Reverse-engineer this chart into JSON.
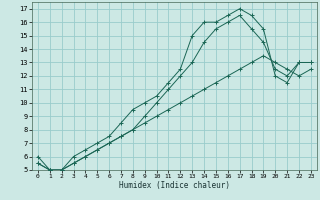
{
  "xlabel": "Humidex (Indice chaleur)",
  "bg_color": "#cce8e4",
  "grid_color": "#99cccc",
  "line_color": "#1a6655",
  "xlim": [
    -0.5,
    23.5
  ],
  "ylim": [
    5,
    17.5
  ],
  "xticks": [
    0,
    1,
    2,
    3,
    4,
    5,
    6,
    7,
    8,
    9,
    10,
    11,
    12,
    13,
    14,
    15,
    16,
    17,
    18,
    19,
    20,
    21,
    22,
    23
  ],
  "yticks": [
    5,
    6,
    7,
    8,
    9,
    10,
    11,
    12,
    13,
    14,
    15,
    16,
    17
  ],
  "line1_x": [
    0,
    1,
    2,
    3,
    4,
    5,
    6,
    7,
    8,
    9,
    10,
    11,
    12,
    13,
    14,
    15,
    16,
    17,
    18,
    19,
    20,
    21,
    22,
    23
  ],
  "line1_y": [
    6.0,
    5.0,
    5.0,
    6.0,
    6.5,
    7.0,
    7.5,
    8.5,
    9.5,
    10.0,
    10.5,
    11.5,
    12.5,
    15.0,
    16.0,
    16.0,
    16.5,
    17.0,
    16.5,
    15.5,
    12.0,
    11.5,
    13.0,
    13.0
  ],
  "line2_x": [
    0,
    1,
    2,
    3,
    4,
    5,
    6,
    7,
    8,
    9,
    10,
    11,
    12,
    13,
    14,
    15,
    16,
    17,
    18,
    19,
    20,
    21,
    22,
    23
  ],
  "line2_y": [
    5.5,
    5.0,
    5.0,
    5.5,
    6.0,
    6.5,
    7.0,
    7.5,
    8.0,
    8.5,
    9.0,
    9.5,
    10.0,
    10.5,
    11.0,
    11.5,
    12.0,
    12.5,
    13.0,
    13.5,
    13.0,
    12.5,
    12.0,
    12.5
  ],
  "line3_x": [
    0,
    1,
    2,
    3,
    4,
    5,
    6,
    7,
    8,
    9,
    10,
    11,
    12,
    13,
    14,
    15,
    16,
    17,
    18,
    19,
    20,
    21,
    22,
    23
  ],
  "line3_y": [
    5.5,
    5.0,
    5.0,
    5.5,
    6.0,
    6.5,
    7.0,
    7.5,
    8.0,
    9.0,
    10.0,
    11.0,
    12.0,
    13.0,
    14.5,
    15.5,
    16.0,
    16.5,
    15.5,
    14.5,
    12.5,
    12.0,
    13.0,
    13.0
  ]
}
